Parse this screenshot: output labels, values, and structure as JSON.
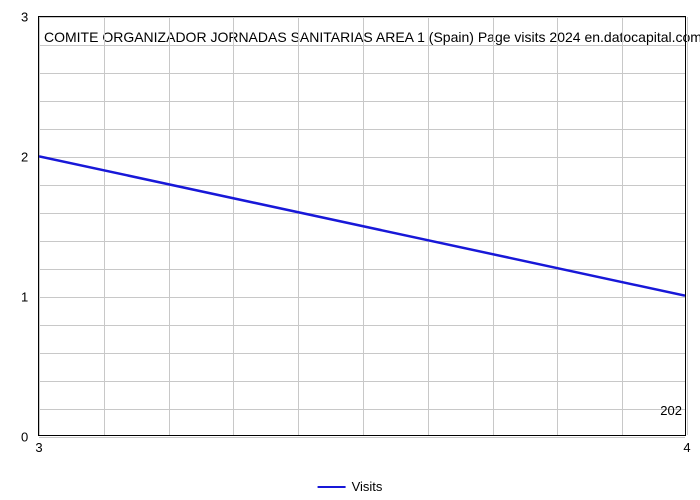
{
  "chart": {
    "type": "line",
    "title": "COMITE ORGANIZADOR JORNADAS SANITARIAS AREA 1 (Spain) Page visits 2024 en.datocapital.com",
    "title_fontsize": 14,
    "title_fontweight": "normal",
    "title_color": "#000000",
    "background_color": "#ffffff",
    "plot_border_color": "#000000",
    "grid_color": "#c8c8c8",
    "x_values": [
      3,
      4
    ],
    "y_values": [
      2.0,
      1.0
    ],
    "line_color": "#1818d8",
    "line_width": 2.5,
    "xlim": [
      3,
      4
    ],
    "ylim": [
      0,
      3
    ],
    "x_ticks": [
      3,
      4
    ],
    "x_tick_labels": [
      "3",
      "4"
    ],
    "y_ticks": [
      0,
      1,
      2,
      3
    ],
    "y_tick_labels": [
      "0",
      "1",
      "2",
      "3"
    ],
    "x_minor_gridlines": 10,
    "y_minor_per_major": 5,
    "axis_extra_label": "202",
    "legend": {
      "label": "Visits",
      "line_color": "#1818d8",
      "position": "bottom-center"
    },
    "tick_fontsize": 13
  }
}
